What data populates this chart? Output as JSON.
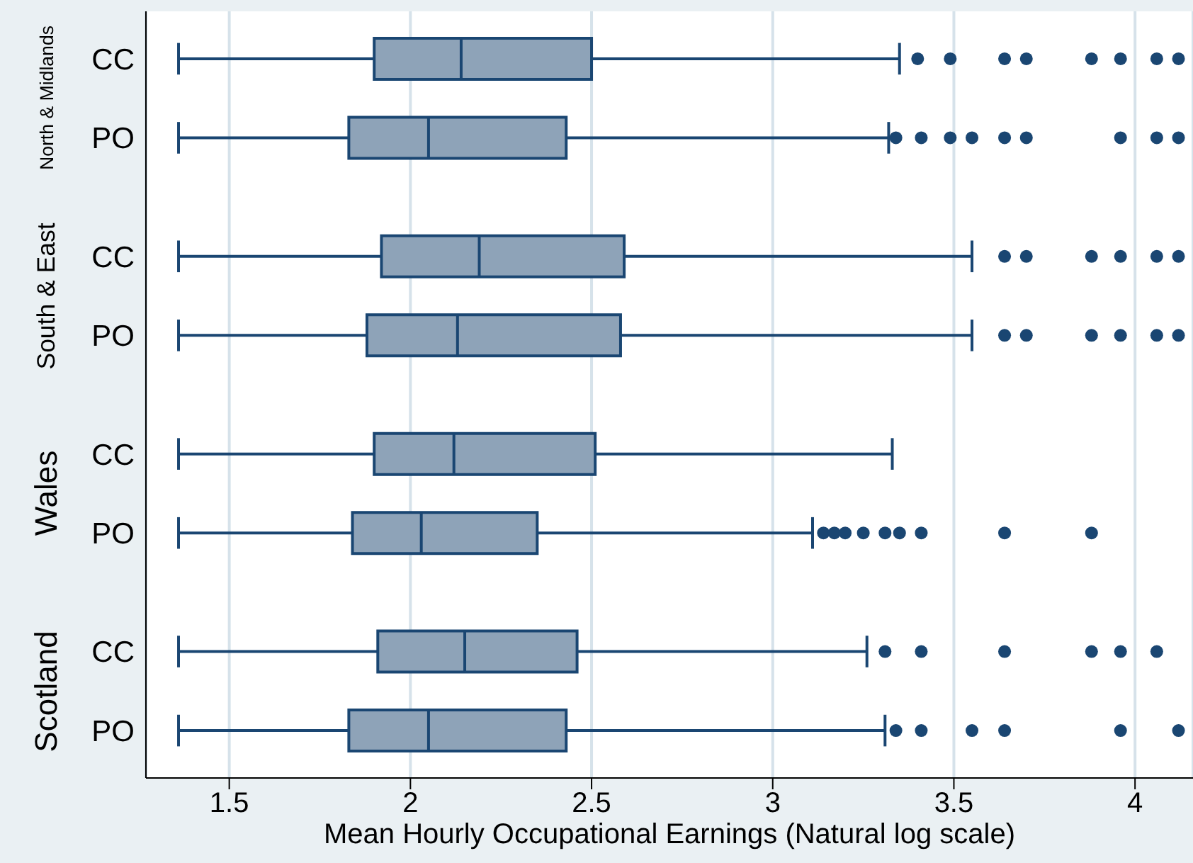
{
  "chart_data": {
    "type": "box",
    "orientation": "horizontal",
    "categories": [
      "CC",
      "PO",
      "CC",
      "PO",
      "CC",
      "PO",
      "CC",
      "PO"
    ],
    "series": [
      {
        "color": "#8ea3b8",
        "boxes": [
          {
            "low": 1.36,
            "q1": 1.9,
            "median": 2.14,
            "q3": 2.5,
            "high": 3.35,
            "outliers": [
              3.4,
              3.49,
              3.64,
              3.7,
              3.88,
              3.96,
              4.06,
              4.12
            ]
          },
          {
            "low": 1.36,
            "q1": 1.83,
            "median": 2.05,
            "q3": 2.43,
            "high": 3.32,
            "outliers": [
              3.34,
              3.41,
              3.49,
              3.55,
              3.64,
              3.7,
              3.96,
              4.06,
              4.12
            ]
          },
          {
            "low": 1.36,
            "q1": 1.92,
            "median": 2.19,
            "q3": 2.59,
            "high": 3.55,
            "outliers": [
              3.64,
              3.7,
              3.88,
              3.96,
              4.06,
              4.12
            ]
          },
          {
            "low": 1.36,
            "q1": 1.88,
            "median": 2.13,
            "q3": 2.58,
            "high": 3.55,
            "outliers": [
              3.64,
              3.7,
              3.88,
              3.96,
              4.06,
              4.12
            ]
          },
          {
            "low": 1.36,
            "q1": 1.9,
            "median": 2.12,
            "q3": 2.51,
            "high": 3.33
          },
          {
            "low": 1.36,
            "q1": 1.84,
            "median": 2.03,
            "q3": 2.35,
            "high": 3.11,
            "outliers": [
              3.14,
              3.17,
              3.2,
              3.25,
              3.31,
              3.35,
              3.41,
              3.64,
              3.88
            ]
          },
          {
            "low": 1.36,
            "q1": 1.91,
            "median": 2.15,
            "q3": 2.46,
            "high": 3.26,
            "outliers": [
              3.31,
              3.41,
              3.64,
              3.88,
              3.96,
              4.06
            ]
          },
          {
            "low": 1.36,
            "q1": 1.83,
            "median": 2.05,
            "q3": 2.43,
            "high": 3.31,
            "outliers": [
              3.34,
              3.41,
              3.55,
              3.64,
              3.96,
              4.12
            ]
          }
        ]
      }
    ],
    "xlabel": "Mean Hourly Occupational Earnings (Natural log scale)",
    "xlim": [
      1.27,
      4.16
    ],
    "xticks": [
      1.5,
      2,
      2.5,
      3,
      3.5,
      4
    ],
    "grid": "x",
    "marker": "circle",
    "annotations": [
      "North & Midlands",
      "South & East",
      "Wales",
      "Scotland"
    ]
  }
}
